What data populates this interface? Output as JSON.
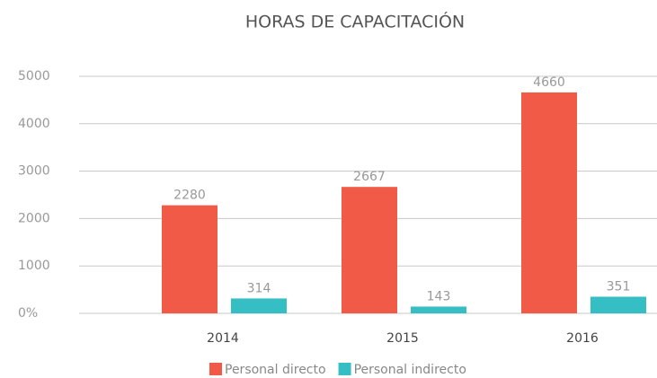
{
  "chart_data": {
    "type": "bar",
    "title": "HORAS DE CAPACITACIÓN",
    "categories": [
      "2014",
      "2015",
      "2016"
    ],
    "series": [
      {
        "name": "Personal directo",
        "color": "#f05a46",
        "values": [
          2280,
          2667,
          4660
        ]
      },
      {
        "name": "Personal indirecto",
        "color": "#35bfc4",
        "values": [
          314,
          143,
          351
        ]
      }
    ],
    "ylim": [
      0,
      5000
    ],
    "yticks": [
      {
        "value": 0,
        "label": "0%"
      },
      1000,
      2000,
      3000,
      4000,
      5000
    ],
    "grid": true,
    "legend": "bottom"
  }
}
